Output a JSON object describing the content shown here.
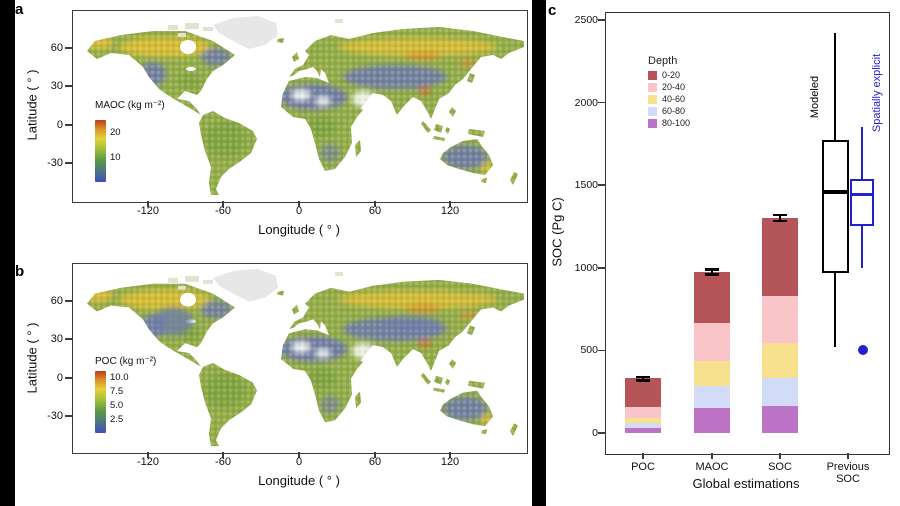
{
  "panel_a": {
    "label": "a",
    "ylabel": "Latitude ( ° )",
    "xlabel": "Longitude ( ° )",
    "yticks": [
      "60",
      "30",
      "0",
      "-30"
    ],
    "xticks": [
      "-120",
      "-60",
      "0",
      "60",
      "120"
    ],
    "colorbar": {
      "title": "MAOC (kg m⁻²)",
      "ticks": [
        "20",
        "10"
      ]
    }
  },
  "panel_b": {
    "label": "b",
    "ylabel": "Latitude ( ° )",
    "xlabel": "Longitude ( ° )",
    "yticks": [
      "60",
      "30",
      "0",
      "-30"
    ],
    "xticks": [
      "-120",
      "-60",
      "0",
      "60",
      "120"
    ],
    "colorbar": {
      "title": "POC (kg m⁻²)",
      "ticks": [
        "10.0",
        "7.5",
        "5.0",
        "2.5"
      ]
    }
  },
  "panel_c": {
    "label": "c",
    "ylabel": "SOC (Pg C)",
    "xlabel": "Global estimations",
    "categories": [
      "POC",
      "MAOC",
      "SOC",
      "Previous SOC"
    ],
    "legend_title": "Depth",
    "box_labels": [
      "Modeled",
      "Spatially explicit"
    ],
    "box_label_colors": [
      "#000000",
      "#2222cc"
    ]
  },
  "chart_data": [
    {
      "type": "heatmap",
      "subtype": "world-map",
      "title": "Global MAOC stock map",
      "xlabel": "Longitude ( ° )",
      "ylabel": "Latitude ( ° )",
      "xticks": [
        -120,
        -60,
        0,
        60,
        120
      ],
      "yticks": [
        60,
        30,
        0,
        -30
      ],
      "colorbar": {
        "label": "MAOC (kg m⁻²)",
        "ticks": [
          20,
          10
        ],
        "range": [
          0,
          25
        ],
        "gradient_bottom_to_top": [
          "#3f4fbe",
          "#5a9a44",
          "#a8c139",
          "#e3d238",
          "#e0922a",
          "#bb3b1a"
        ]
      }
    },
    {
      "type": "heatmap",
      "subtype": "world-map",
      "title": "Global POC stock map",
      "xlabel": "Longitude ( ° )",
      "ylabel": "Latitude ( ° )",
      "xticks": [
        -120,
        -60,
        0,
        60,
        120
      ],
      "yticks": [
        60,
        30,
        0,
        -30
      ],
      "colorbar": {
        "label": "POC (kg m⁻²)",
        "ticks": [
          10,
          7.5,
          5,
          2.5
        ],
        "range": [
          0,
          11
        ],
        "gradient_bottom_to_top": [
          "#3f4fbe",
          "#5a9a44",
          "#a8c139",
          "#e3d238",
          "#e0922a",
          "#bb3b1a"
        ]
      }
    },
    {
      "type": "bar",
      "stacked": true,
      "categories": [
        "POC",
        "MAOC",
        "SOC",
        "Previous SOC"
      ],
      "xlabel": "Global estimations",
      "ylabel": "SOC (Pg C)",
      "ylim": [
        0,
        2500
      ],
      "yticks": [
        0,
        500,
        1000,
        1500,
        2000,
        2500
      ],
      "legend_title": "Depth",
      "series": [
        {
          "name": "0-20",
          "color": "#b65559",
          "values": [
            170,
            310,
            470
          ]
        },
        {
          "name": "20-40",
          "color": "#f9c5c8",
          "values": [
            70,
            230,
            285
          ]
        },
        {
          "name": "40-60",
          "color": "#f7e08e",
          "values": [
            30,
            150,
            210
          ]
        },
        {
          "name": "60-80",
          "color": "#d3dcf7",
          "values": [
            30,
            135,
            170
          ]
        },
        {
          "name": "80-100",
          "color": "#bd73c5",
          "values": [
            30,
            150,
            165
          ]
        }
      ],
      "stack_bottom_to_top": [
        "80-100",
        "60-80",
        "40-60",
        "20-40",
        "0-20"
      ],
      "totals": [
        330,
        975,
        1300
      ],
      "error_bars": [
        [
          318,
          342
        ],
        [
          960,
          990
        ],
        [
          1285,
          1320
        ]
      ],
      "boxplots": [
        {
          "label": "Modeled",
          "color": "#000000",
          "min": 520,
          "q1": 970,
          "median": 1460,
          "q3": 1775,
          "max": 2420,
          "outliers": []
        },
        {
          "label": "Spatially explicit",
          "color": "#2222cc",
          "min": 1000,
          "q1": 1255,
          "median": 1445,
          "q3": 1535,
          "max": 1850,
          "outliers": [
            500
          ]
        }
      ]
    }
  ]
}
